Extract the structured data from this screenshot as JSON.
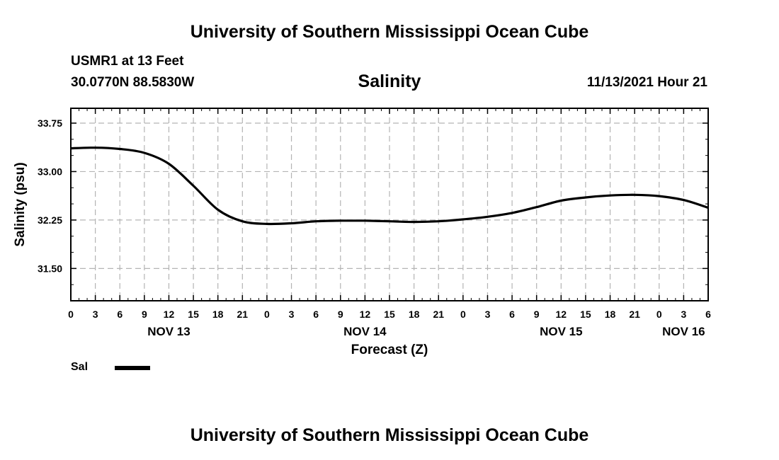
{
  "header": {
    "title": "University of Southern Mississippi Ocean Cube",
    "station": "USMR1 at 13 Feet",
    "coordinates": "30.0770N  88.5830W",
    "run_time": "11/13/2021 Hour 21"
  },
  "footer": {
    "title": "University of Southern Mississippi Ocean Cube"
  },
  "legend": {
    "items": [
      {
        "label": "Sal",
        "color": "#000000"
      }
    ]
  },
  "chart_data": {
    "type": "line",
    "title": "Salinity",
    "xlabel": "Forecast (Z)",
    "ylabel": "Salinity (psu)",
    "xlim": [
      0,
      78
    ],
    "ylim": [
      31.0,
      33.98
    ],
    "yticks": [
      31.5,
      32.25,
      33.0,
      33.75
    ],
    "ytick_labels": [
      "31.50",
      "32.25",
      "33.00",
      "33.75"
    ],
    "xticks": [
      0,
      3,
      6,
      9,
      12,
      15,
      18,
      21,
      24,
      27,
      30,
      33,
      36,
      39,
      42,
      45,
      48,
      51,
      54,
      57,
      60,
      63,
      66,
      69,
      72,
      75,
      78
    ],
    "xtick_labels": [
      "0",
      "3",
      "6",
      "9",
      "12",
      "15",
      "18",
      "21",
      "0",
      "3",
      "6",
      "9",
      "12",
      "15",
      "18",
      "21",
      "0",
      "3",
      "6",
      "9",
      "12",
      "15",
      "18",
      "21",
      "0",
      "3",
      "6"
    ],
    "date_labels": [
      {
        "x": 12,
        "label": "NOV 13"
      },
      {
        "x": 36,
        "label": "NOV 14"
      },
      {
        "x": 60,
        "label": "NOV 15"
      },
      {
        "x": 75,
        "label": "NOV 16"
      }
    ],
    "grid": true,
    "legend_position": "bottom-left",
    "series": [
      {
        "name": "Sal",
        "color": "#000000",
        "x": [
          0,
          3,
          6,
          9,
          12,
          15,
          18,
          21,
          24,
          27,
          30,
          33,
          36,
          39,
          42,
          45,
          48,
          51,
          54,
          57,
          60,
          63,
          66,
          69,
          72,
          75,
          78
        ],
        "y": [
          33.36,
          33.37,
          33.35,
          33.29,
          33.12,
          32.78,
          32.41,
          32.23,
          32.19,
          32.2,
          32.23,
          32.24,
          32.24,
          32.23,
          32.22,
          32.23,
          32.26,
          32.3,
          32.36,
          32.45,
          32.55,
          32.6,
          32.63,
          32.64,
          32.62,
          32.56,
          32.44
        ]
      }
    ]
  }
}
